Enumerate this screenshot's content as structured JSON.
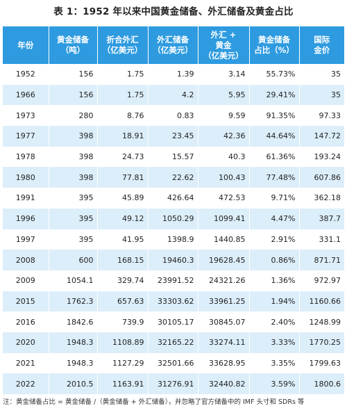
{
  "title": "表 1：1952 年以来中国黄金储备、外汇储备及黄金占比",
  "columns": [
    [
      "年份"
    ],
    [
      "黄金储备",
      "（吨）"
    ],
    [
      "折合外汇",
      "（亿美元）"
    ],
    [
      "外汇储备",
      "（亿美元）"
    ],
    [
      "外汇 +",
      "黄金",
      "（亿美元）"
    ],
    [
      "黄金储备",
      "占比（%）"
    ],
    [
      "国际",
      "金价"
    ]
  ],
  "rows": [
    [
      "1952",
      "156",
      "1.75",
      "1.39",
      "3.14",
      "55.73%",
      "35"
    ],
    [
      "1966",
      "156",
      "1.75",
      "4.2",
      "5.95",
      "29.41%",
      "35"
    ],
    [
      "1973",
      "280",
      "8.76",
      "0.83",
      "9.59",
      "91.35%",
      "97.33"
    ],
    [
      "1977",
      "398",
      "18.91",
      "23.45",
      "42.36",
      "44.64%",
      "147.72"
    ],
    [
      "1978",
      "398",
      "24.73",
      "15.57",
      "40.3",
      "61.36%",
      "193.24"
    ],
    [
      "1980",
      "398",
      "77.81",
      "22.62",
      "100.43",
      "77.48%",
      "607.86"
    ],
    [
      "1991",
      "395",
      "45.89",
      "426.64",
      "472.53",
      "9.71%",
      "362.18"
    ],
    [
      "1996",
      "395",
      "49.12",
      "1050.29",
      "1099.41",
      "4.47%",
      "387.7"
    ],
    [
      "1997",
      "395",
      "41.95",
      "1398.9",
      "1440.85",
      "2.91%",
      "331.1"
    ],
    [
      "2008",
      "600",
      "168.15",
      "19460.3",
      "19628.45",
      "0.86%",
      "871.71"
    ],
    [
      "2009",
      "1054.1",
      "329.74",
      "23991.52",
      "24321.26",
      "1.36%",
      "972.97"
    ],
    [
      "2015",
      "1762.3",
      "657.63",
      "33303.62",
      "33961.25",
      "1.94%",
      "1160.66"
    ],
    [
      "2016",
      "1842.6",
      "739.9",
      "30105.17",
      "30845.07",
      "2.40%",
      "1248.99"
    ],
    [
      "2020",
      "1948.3",
      "1108.89",
      "32165.22",
      "33274.11",
      "3.33%",
      "1770.25"
    ],
    [
      "2021",
      "1948.3",
      "1127.29",
      "32501.66",
      "33628.95",
      "3.35%",
      "1799.63"
    ],
    [
      "2022",
      "2010.5",
      "1163.91",
      "31276.91",
      "32440.82",
      "3.59%",
      "1800.6"
    ]
  ],
  "note": "注：黄金储备占比 = 黄金储备 /（黄金储备 + 外汇储备），并忽略了官方储备中的 IMF 头寸和 SDRs 等"
}
